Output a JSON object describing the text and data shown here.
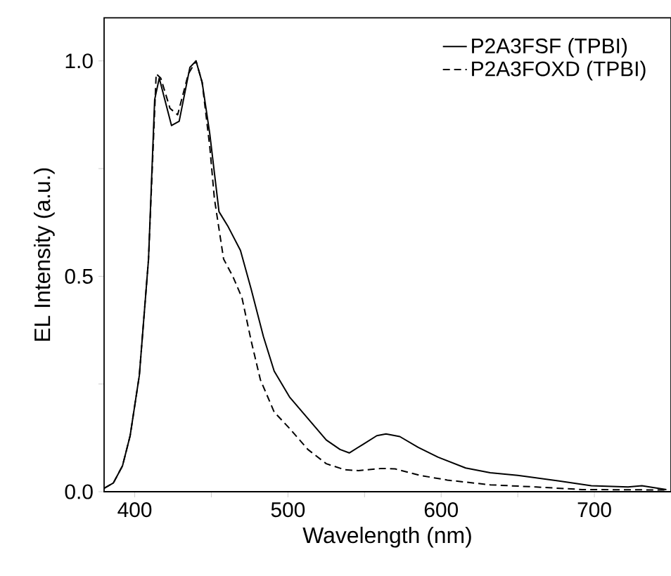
{
  "chart_data": {
    "type": "line",
    "xlabel": "Wavelength (nm)",
    "ylabel": "EL Intensity (a.u.)",
    "xlim": [
      380,
      750
    ],
    "ylim": [
      0,
      1.1
    ],
    "xticks": [
      400,
      {
        "value": 450,
        "label": null
      },
      500,
      {
        "value": 550,
        "label": null
      },
      600,
      {
        "value": 650,
        "label": null
      },
      700
    ],
    "yticks": [
      {
        "value": 0,
        "label": "0.0"
      },
      {
        "value": 0.25,
        "label": null
      },
      {
        "value": 0.5,
        "label": "0.5"
      },
      {
        "value": 0.75,
        "label": null
      },
      {
        "value": 1.0,
        "label": "1.0"
      }
    ],
    "legend": "top right",
    "series": [
      {
        "name": "P2A3FSF (TPBI)",
        "color": "#000000",
        "line_style": "solid",
        "x": [
          380,
          386,
          392,
          397,
          403,
          409,
          413,
          416,
          424,
          429,
          436,
          440,
          444,
          449,
          455,
          461,
          469,
          476,
          484,
          491,
          501,
          513,
          525,
          534,
          540,
          549,
          558,
          564,
          573,
          585,
          598,
          616,
          632,
          650,
          677,
          698,
          722,
          731,
          747
        ],
        "values": [
          0.008,
          0.02,
          0.06,
          0.13,
          0.27,
          0.54,
          0.91,
          0.96,
          0.85,
          0.86,
          0.985,
          1.0,
          0.95,
          0.83,
          0.65,
          0.615,
          0.56,
          0.47,
          0.36,
          0.28,
          0.22,
          0.17,
          0.12,
          0.098,
          0.09,
          0.11,
          0.13,
          0.134,
          0.128,
          0.103,
          0.08,
          0.055,
          0.044,
          0.038,
          0.025,
          0.014,
          0.011,
          0.014,
          0.005
        ]
      },
      {
        "name": "P2A3FOXD (TPBI)",
        "color": "#000000",
        "line_style": "dashed",
        "x": [
          380,
          386,
          392,
          397,
          403,
          409,
          414,
          417,
          423,
          428,
          435,
          440,
          444,
          449,
          452,
          458,
          464,
          470,
          476,
          482,
          491,
          501,
          513,
          525,
          537,
          546,
          561,
          570,
          586,
          604,
          632,
          662,
          692,
          747
        ],
        "values": [
          0.008,
          0.02,
          0.06,
          0.13,
          0.27,
          0.54,
          0.97,
          0.96,
          0.89,
          0.875,
          0.97,
          1.0,
          0.95,
          0.8,
          0.68,
          0.54,
          0.5,
          0.45,
          0.35,
          0.26,
          0.185,
          0.147,
          0.098,
          0.065,
          0.051,
          0.049,
          0.054,
          0.053,
          0.038,
          0.027,
          0.016,
          0.011,
          0.005,
          0.004
        ]
      }
    ]
  }
}
